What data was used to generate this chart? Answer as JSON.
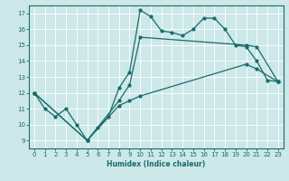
{
  "xlabel": "Humidex (Indice chaleur)",
  "xlim": [
    -0.5,
    23.5
  ],
  "ylim": [
    8.5,
    17.5
  ],
  "yticks": [
    9,
    10,
    11,
    12,
    13,
    14,
    15,
    16,
    17
  ],
  "xticks": [
    0,
    1,
    2,
    3,
    4,
    5,
    6,
    7,
    8,
    9,
    10,
    11,
    12,
    13,
    14,
    15,
    16,
    17,
    18,
    19,
    20,
    21,
    22,
    23
  ],
  "bg_color": "#cce8e8",
  "grid_color": "#ffffff",
  "line_color": "#1a6b6b",
  "line1_x": [
    0,
    1,
    2,
    3,
    4,
    5,
    6,
    7,
    8,
    9,
    10,
    11,
    12,
    13,
    14,
    15,
    16,
    17,
    18,
    19,
    20,
    21,
    22,
    23
  ],
  "line1_y": [
    12,
    11,
    10.5,
    11,
    10,
    9,
    9.8,
    10.5,
    12.3,
    13.3,
    17.2,
    16.8,
    15.9,
    15.8,
    15.6,
    16.0,
    16.7,
    16.7,
    16.0,
    15.0,
    14.9,
    14.0,
    12.8,
    12.7
  ],
  "line2_x": [
    0,
    5,
    8,
    9,
    10,
    20,
    21,
    23
  ],
  "line2_y": [
    12,
    9,
    11.5,
    12.5,
    15.5,
    15.0,
    14.9,
    12.7
  ],
  "line3_x": [
    0,
    5,
    8,
    9,
    10,
    20,
    21,
    23
  ],
  "line3_y": [
    12,
    9,
    11.2,
    11.5,
    11.8,
    13.8,
    13.5,
    12.7
  ]
}
